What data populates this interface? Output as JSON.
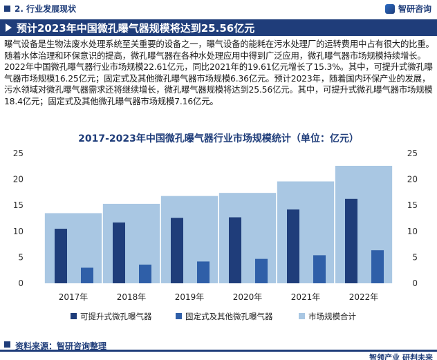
{
  "header": {
    "section": "2. 行业发展现状",
    "brand": "智研咨询"
  },
  "heading": "预计2023年中国微孔曝气器规模将达到25.56亿元",
  "paragraph": "曝气设备是生物法废水处理系统至关重要的设备之一，曝气设备的能耗在污水处理厂的运转费用中占有很大的比重。随着水体治理和环保意识的提高，微孔曝气器在各种水处理应用中得到广泛应用，微孔曝气器市场规模持续增长。2022年中国微孔曝气器行业市场规模22.61亿元，同比2021年的19.61亿元增长了15.3%。其中，可提升式微孔曝气器市场规模16.25亿元；固定式及其他微孔曝气器市场规模6.36亿元。预计2023年，随着国内环保产业的发展，污水领域对微孔曝气器需求还将继续增长，微孔曝气器规模将达到25.56亿元。其中，可提升式微孔曝气器市场规模18.4亿元；固定式及其他微孔曝气器市场规模7.16亿元。",
  "chart_data": {
    "type": "bar",
    "title": "2017-2023年中国微孔曝气器行业市场规模统计（单位：亿元）",
    "categories": [
      "2017年",
      "2018年",
      "2019年",
      "2020年",
      "2021年",
      "2022年"
    ],
    "series": [
      {
        "name": "可提升式微孔曝气器",
        "values": [
          10.5,
          11.7,
          12.6,
          12.7,
          14.2,
          16.25
        ],
        "color": "#1f3d7a"
      },
      {
        "name": "固定式及其他微孔曝气器",
        "values": [
          3.0,
          3.6,
          4.2,
          4.7,
          5.4,
          6.36
        ],
        "color": "#2f5fa8"
      },
      {
        "name": "市场规模合计",
        "values": [
          13.5,
          15.3,
          16.8,
          17.4,
          19.61,
          22.61
        ],
        "color": "#a9c7e3"
      }
    ],
    "ylim": [
      0,
      25
    ],
    "yticks": [
      "0",
      "5",
      "10",
      "15",
      "20",
      "25"
    ],
    "grid": false,
    "legend": "bottom"
  },
  "footer": {
    "source": "资料来源：智研咨询整理",
    "slogan": "智领产业 研判未来"
  }
}
